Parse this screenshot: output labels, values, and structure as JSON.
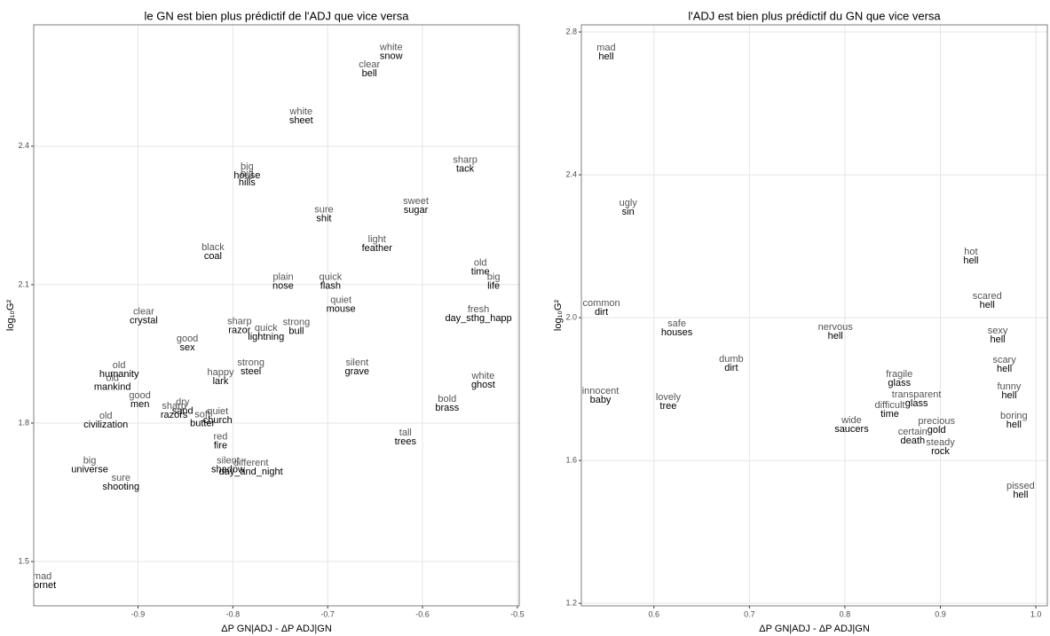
{
  "chart_data": [
    {
      "type": "scatter",
      "title": "le GN est bien plus prédictif de l'ADJ que vice versa",
      "xlabel": "ΔP GN|ADJ - ΔP ADJ|GN",
      "ylabel": "log₁₀G²",
      "xlim": [
        -1.01,
        -0.498
      ],
      "ylim": [
        1.404,
        2.663
      ],
      "xticks": [
        -0.9,
        -0.8,
        -0.7,
        -0.6,
        -0.5
      ],
      "yticks": [
        1.5,
        1.8,
        2.1,
        2.4
      ],
      "grid": true,
      "adjectives": [
        "white",
        "clear",
        "white",
        "big",
        "big",
        "sharp",
        "sure",
        "sweet",
        "light",
        "black",
        "old",
        "big",
        "plain",
        "quick",
        "quiet",
        "fresh",
        "clear",
        "sharp",
        "strong",
        "quick",
        "good",
        "strong",
        "happy",
        "silent",
        "white",
        "bold",
        "tall",
        "old",
        "old",
        "dry",
        "sharp",
        "soft",
        "quiet",
        "old",
        "good",
        "red",
        "silent",
        "different",
        "sure",
        "big",
        "mad"
      ],
      "nouns": [
        "snow",
        "bell",
        "sheet",
        "house",
        "hills",
        "tack",
        "shit",
        "sugar",
        "feather",
        "coal",
        "time",
        "life",
        "nose",
        "flash",
        "mouse",
        "day_sthg_happ",
        "crystal",
        "razor",
        "bull",
        "lightning",
        "sex",
        "steel",
        "lark",
        "grave",
        "ghost",
        "brass",
        "trees",
        "humanity",
        "mankind",
        "sand",
        "razors",
        "butter",
        "church",
        "civilization",
        "men",
        "fire",
        "shadow",
        "day_and_night",
        "shooting",
        "universe",
        "hornet"
      ],
      "x": [
        -0.633,
        -0.656,
        -0.728,
        -0.785,
        -0.785,
        -0.555,
        -0.704,
        -0.607,
        -0.648,
        -0.821,
        -0.539,
        -0.525,
        -0.747,
        -0.697,
        -0.686,
        -0.541,
        -0.894,
        -0.793,
        -0.733,
        -0.765,
        -0.848,
        -0.781,
        -0.813,
        -0.669,
        -0.536,
        -0.574,
        -0.618,
        -0.92,
        -0.927,
        -0.853,
        -0.862,
        -0.832,
        -0.816,
        -0.934,
        -0.898,
        -0.813,
        -0.805,
        -0.781,
        -0.918,
        -0.951,
        -1.001
      ],
      "values": [
        2.604,
        2.567,
        2.465,
        2.346,
        2.33,
        2.36,
        2.252,
        2.271,
        2.188,
        2.171,
        2.137,
        2.106,
        2.106,
        2.106,
        2.056,
        2.036,
        2.031,
        2.01,
        2.008,
        1.996,
        1.973,
        1.921,
        1.9,
        1.921,
        1.892,
        1.842,
        1.769,
        1.915,
        1.887,
        1.835,
        1.827,
        1.808,
        1.815,
        1.806,
        1.85,
        1.76,
        1.708,
        1.704,
        1.671,
        1.708,
        1.458
      ],
      "adjective_color": "#555555",
      "noun_color": "#000000"
    },
    {
      "type": "scatter",
      "title": "l'ADJ est bien plus prédictif du GN que vice versa",
      "xlabel": "ΔP GN|ADJ - ΔP ADJ|GN",
      "ylabel": "log₁₀G²",
      "xlim": [
        0.524,
        1.012
      ],
      "ylim": [
        1.193,
        2.82
      ],
      "xticks": [
        0.6,
        0.7,
        0.8,
        0.9,
        {
          "value": 1,
          "label": "1.0"
        }
      ],
      "yticks": [
        1.2,
        1.6,
        {
          "value": 2,
          "label": "2.0"
        },
        2.4,
        2.8
      ],
      "grid": true,
      "adjectives": [
        "mad",
        "ugly",
        "common",
        "safe",
        "nervous",
        "hot",
        "scared",
        "sexy",
        "scary",
        "funny",
        "boring",
        "dumb",
        "innocent",
        "lovely",
        "fragile",
        "transparent",
        "difficult",
        "wide",
        "precious",
        "certain",
        "steady",
        "pissed"
      ],
      "nouns": [
        "hell",
        "sin",
        "dirt",
        "houses",
        "hell",
        "hell",
        "hell",
        "hell",
        "hell",
        "hell",
        "hell",
        "dirt",
        "baby",
        "tree",
        "glass",
        "glass",
        "time",
        "saucers",
        "gold",
        "death",
        "rock",
        "hell"
      ],
      "x": [
        0.55,
        0.573,
        0.545,
        0.624,
        0.79,
        0.932,
        0.949,
        0.96,
        0.967,
        0.972,
        0.977,
        0.681,
        0.544,
        0.615,
        0.857,
        0.875,
        0.847,
        0.807,
        0.896,
        0.871,
        0.9,
        0.984
      ],
      "values": [
        2.743,
        2.308,
        2.027,
        1.97,
        1.96,
        2.171,
        2.047,
        1.95,
        1.868,
        1.794,
        1.712,
        1.871,
        1.781,
        1.764,
        1.829,
        1.771,
        1.742,
        1.699,
        1.697,
        1.667,
        1.637,
        1.516
      ],
      "adjective_color": "#555555",
      "noun_color": "#000000"
    }
  ]
}
